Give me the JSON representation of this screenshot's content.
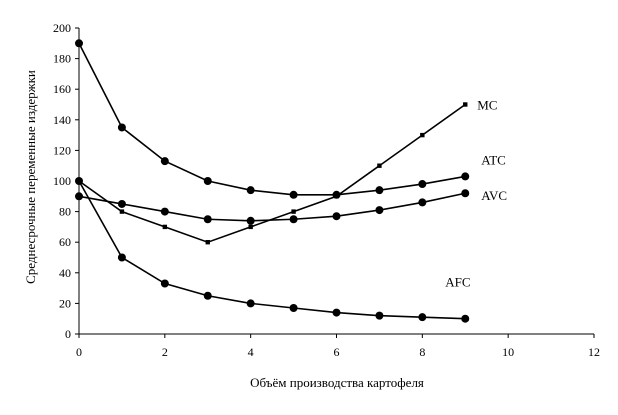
{
  "chart_data": {
    "type": "line",
    "title": "",
    "xlabel": "Объём производства картофеля",
    "ylabel": "Среднесрочные переменные издержки",
    "xlim": [
      0,
      12
    ],
    "ylim": [
      0,
      200
    ],
    "xticks": [
      0,
      2,
      4,
      6,
      8,
      10,
      12
    ],
    "yticks": [
      0,
      20,
      40,
      60,
      80,
      100,
      120,
      140,
      160,
      180,
      200
    ],
    "grid": false,
    "series": [
      {
        "name": "MC",
        "marker": "square",
        "x": [
          0,
          1,
          2,
          3,
          4,
          5,
          6,
          7,
          8,
          9
        ],
        "y": [
          100,
          80,
          70,
          60,
          70,
          80,
          90,
          110,
          130,
          150
        ]
      },
      {
        "name": "ATC",
        "marker": "circle",
        "x": [
          0,
          1,
          2,
          3,
          4,
          5,
          6,
          7,
          8,
          9
        ],
        "y": [
          190,
          135,
          113,
          100,
          94,
          91,
          91,
          94,
          98,
          103
        ]
      },
      {
        "name": "AVC",
        "marker": "circle",
        "x": [
          0,
          1,
          2,
          3,
          4,
          5,
          6,
          7,
          8,
          9
        ],
        "y": [
          90,
          85,
          80,
          75,
          74,
          75,
          77,
          81,
          86,
          92
        ]
      },
      {
        "name": "AFC",
        "marker": "circle",
        "x": [
          0,
          1,
          2,
          3,
          4,
          5,
          6,
          7,
          8,
          9
        ],
        "y": [
          100,
          50,
          33,
          25,
          20,
          17,
          14,
          12,
          11,
          10
        ]
      }
    ]
  }
}
